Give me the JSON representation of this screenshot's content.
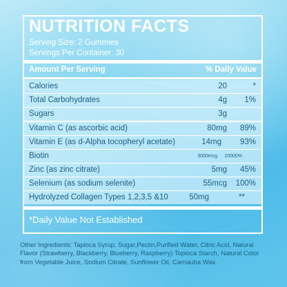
{
  "title": "NUTRITION FACTS",
  "serving_size": "Serving Size: 2 Gummies",
  "servings_per_container": "Servings Per Container: 30",
  "header": {
    "amount": "Amount Per Serving",
    "daily_value": "% Daily Value"
  },
  "rows": [
    {
      "name": "Calories",
      "amount": "20",
      "dv": "*"
    },
    {
      "name": "Total Carbohydrates",
      "amount": "4g",
      "dv": "1%"
    },
    {
      "name": "Sugars",
      "amount": "3g",
      "dv": ""
    },
    {
      "name": "Vitamin C (as ascorbic acid)",
      "amount": "80mg",
      "dv": "89%"
    },
    {
      "name": "Vitamin E (as d-Alpha tocopheryl acetate)",
      "amount": "14mg",
      "dv": "93%"
    },
    {
      "name": "Biotin",
      "amount": "3000mcg",
      "dv": "10000%"
    },
    {
      "name": "Zinc (as zinc citrate)",
      "amount": "5mg",
      "dv": "45%"
    },
    {
      "name": "Selenium (as sodium selenite)",
      "amount": "55mcg",
      "dv": "100%"
    },
    {
      "name": "Hydrolyzed Collagen Types 1,2,3,5 &10",
      "amount": "50mg",
      "dv": "**"
    }
  ],
  "note": "*Daily Value Not Established",
  "ingredients": "Other Ingredients: Tapioca Syrup, Sugar,Pectin,Purified Water, Citric Acid, Natural Flavor (Strawberry, Blackberry, Blueberry, Raspberry) Topioca Starch, Natural Color from Vegetable Juice, Sodium Citrate, Sunflower Oil, Carnauba Wax.",
  "colors": {
    "text_dark": "#1b5f82",
    "panel_border": "#ffffff",
    "band": "#d2f0fc"
  }
}
